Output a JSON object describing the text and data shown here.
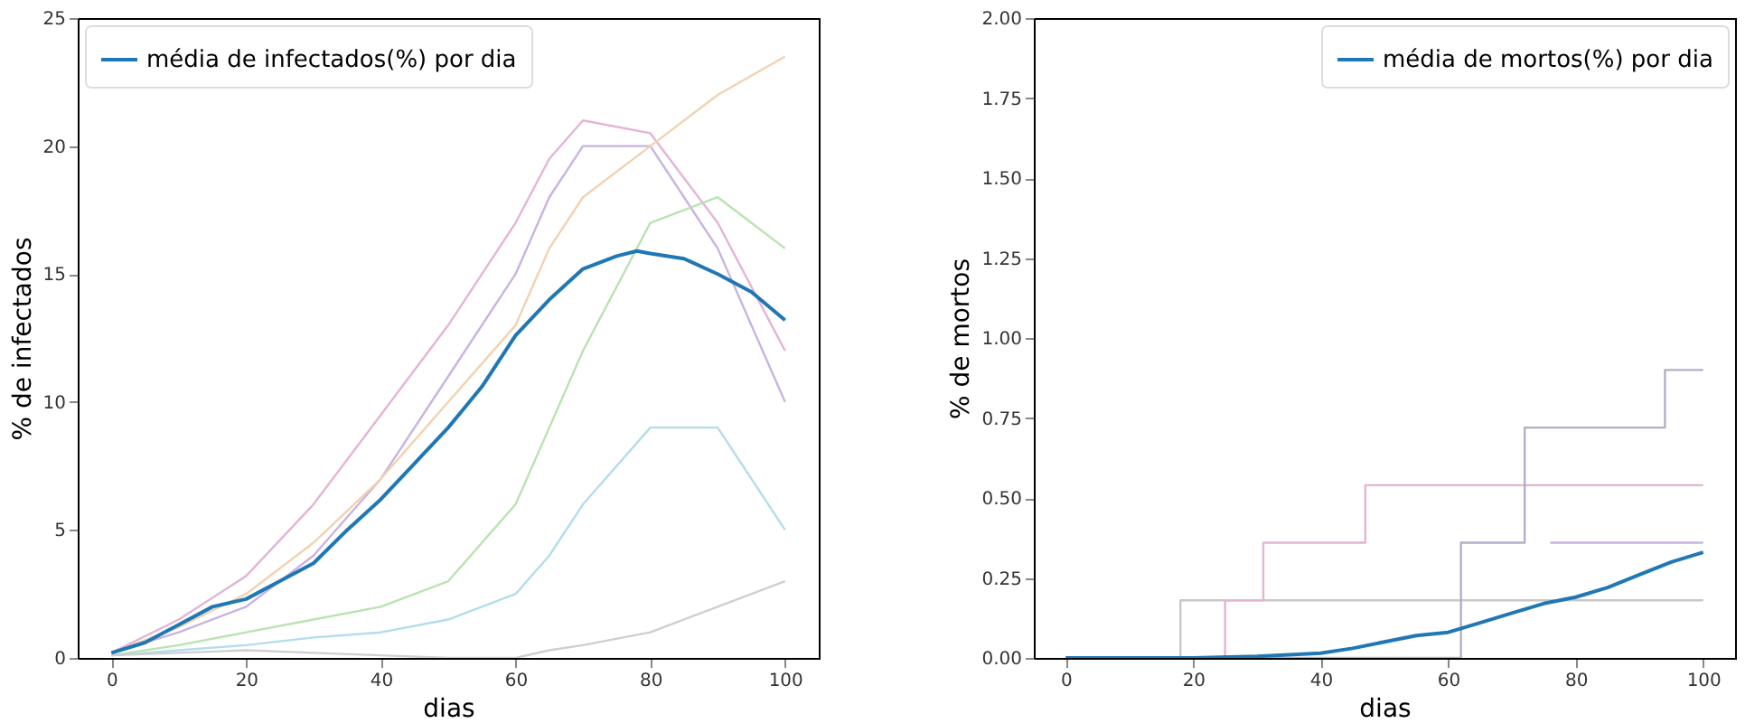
{
  "chart_data": [
    {
      "type": "line",
      "xlabel": "dias",
      "ylabel": "% de infectados",
      "xlim": [
        -5,
        105
      ],
      "xticks": [
        0,
        20,
        40,
        60,
        80,
        100
      ],
      "ylim": [
        0,
        25
      ],
      "yticks": [
        0,
        5,
        10,
        15,
        20,
        25
      ],
      "legend": "top left",
      "series": [
        {
          "color": "#e4b4d6",
          "x": [
            0,
            10,
            20,
            30,
            40,
            50,
            60,
            65,
            70,
            80,
            90,
            100
          ],
          "values": [
            0.2,
            1.5,
            3.2,
            6,
            9.5,
            13,
            17,
            19.5,
            21,
            20.5,
            17,
            12
          ]
        },
        {
          "color": "#c9b3e0",
          "x": [
            0,
            10,
            20,
            30,
            40,
            50,
            60,
            65,
            70,
            80,
            90,
            100
          ],
          "values": [
            0.2,
            1,
            2,
            4,
            7,
            11,
            15,
            18,
            20,
            20,
            16,
            10
          ]
        },
        {
          "color": "#b9e3b0",
          "x": [
            0,
            10,
            20,
            30,
            40,
            50,
            60,
            65,
            70,
            80,
            90,
            100
          ],
          "values": [
            0.1,
            0.5,
            1,
            1.5,
            2,
            3,
            6,
            9,
            12,
            17,
            18,
            16
          ]
        },
        {
          "color": "#b3dcec",
          "x": [
            0,
            10,
            20,
            30,
            40,
            50,
            60,
            65,
            70,
            80,
            90,
            100
          ],
          "values": [
            0.1,
            0.3,
            0.5,
            0.8,
            1,
            1.5,
            2.5,
            4,
            6,
            9,
            9,
            5
          ]
        },
        {
          "color": "#f2d2b0",
          "x": [
            0,
            10,
            20,
            30,
            40,
            50,
            60,
            65,
            70,
            80,
            90,
            100
          ],
          "values": [
            0.2,
            1.2,
            2.5,
            4.5,
            7,
            10,
            13,
            16,
            18,
            20,
            22,
            23.5
          ]
        },
        {
          "color": "#cfcfcf",
          "x": [
            0,
            10,
            20,
            30,
            40,
            50,
            60,
            65,
            70,
            80,
            90,
            100
          ],
          "values": [
            0.1,
            0.2,
            0.3,
            0.2,
            0.1,
            0,
            0,
            0.3,
            0.5,
            1,
            2,
            3
          ]
        },
        {
          "name": "média de infectados(%) por dia",
          "color": "#1f77b4",
          "x": [
            0,
            5,
            10,
            15,
            20,
            25,
            30,
            35,
            40,
            45,
            50,
            55,
            60,
            65,
            70,
            75,
            78,
            80,
            85,
            90,
            95,
            100
          ],
          "values": [
            0.2,
            0.6,
            1.3,
            2,
            2.3,
            3,
            3.7,
            5,
            6.2,
            7.6,
            9,
            10.6,
            12.6,
            14,
            15.2,
            15.7,
            15.9,
            15.8,
            15.6,
            15,
            14.3,
            13.2
          ]
        }
      ]
    },
    {
      "type": "line",
      "xlabel": "dias",
      "ylabel": "% de mortos",
      "xlim": [
        -5,
        105
      ],
      "xticks": [
        0,
        20,
        40,
        60,
        80,
        100
      ],
      "ylim": [
        0,
        2
      ],
      "yticks": [
        {
          "value": 0,
          "label": "0.00"
        },
        {
          "value": 0.25,
          "label": "0.25"
        },
        {
          "value": 0.5,
          "label": "0.50"
        },
        {
          "value": 0.75,
          "label": "0.75"
        },
        {
          "value": 1,
          "label": "1.00"
        },
        {
          "value": 1.25,
          "label": "1.25"
        },
        {
          "value": 1.5,
          "label": "1.50"
        },
        {
          "value": 1.75,
          "label": "1.75"
        },
        {
          "value": 2,
          "label": "2.00"
        }
      ],
      "legend": "top right",
      "series": [
        {
          "type": "step",
          "color": "#c8c8c8",
          "x": [
            0,
            18,
            100
          ],
          "values": [
            0,
            0.18,
            0.18
          ]
        },
        {
          "type": "step",
          "color": "#e4b4d6",
          "x": [
            0,
            25,
            31,
            47,
            100
          ],
          "values": [
            0,
            0.18,
            0.36,
            0.54,
            0.54
          ]
        },
        {
          "type": "step",
          "color": "#b0b0c8",
          "x": [
            0,
            62,
            72,
            94,
            100
          ],
          "values": [
            0,
            0.36,
            0.72,
            0.9,
            0.9
          ]
        },
        {
          "type": "step",
          "color": "#c9b3e0",
          "x": [
            76,
            100
          ],
          "values": [
            0.36,
            0.36
          ]
        },
        {
          "name": "média de mortos(%) por dia",
          "color": "#1f77b4",
          "x": [
            0,
            20,
            30,
            40,
            45,
            50,
            55,
            60,
            65,
            70,
            75,
            80,
            85,
            90,
            95,
            100
          ],
          "values": [
            0,
            0,
            0.005,
            0.015,
            0.03,
            0.05,
            0.07,
            0.08,
            0.11,
            0.14,
            0.17,
            0.19,
            0.22,
            0.26,
            0.3,
            0.33
          ]
        }
      ]
    }
  ]
}
